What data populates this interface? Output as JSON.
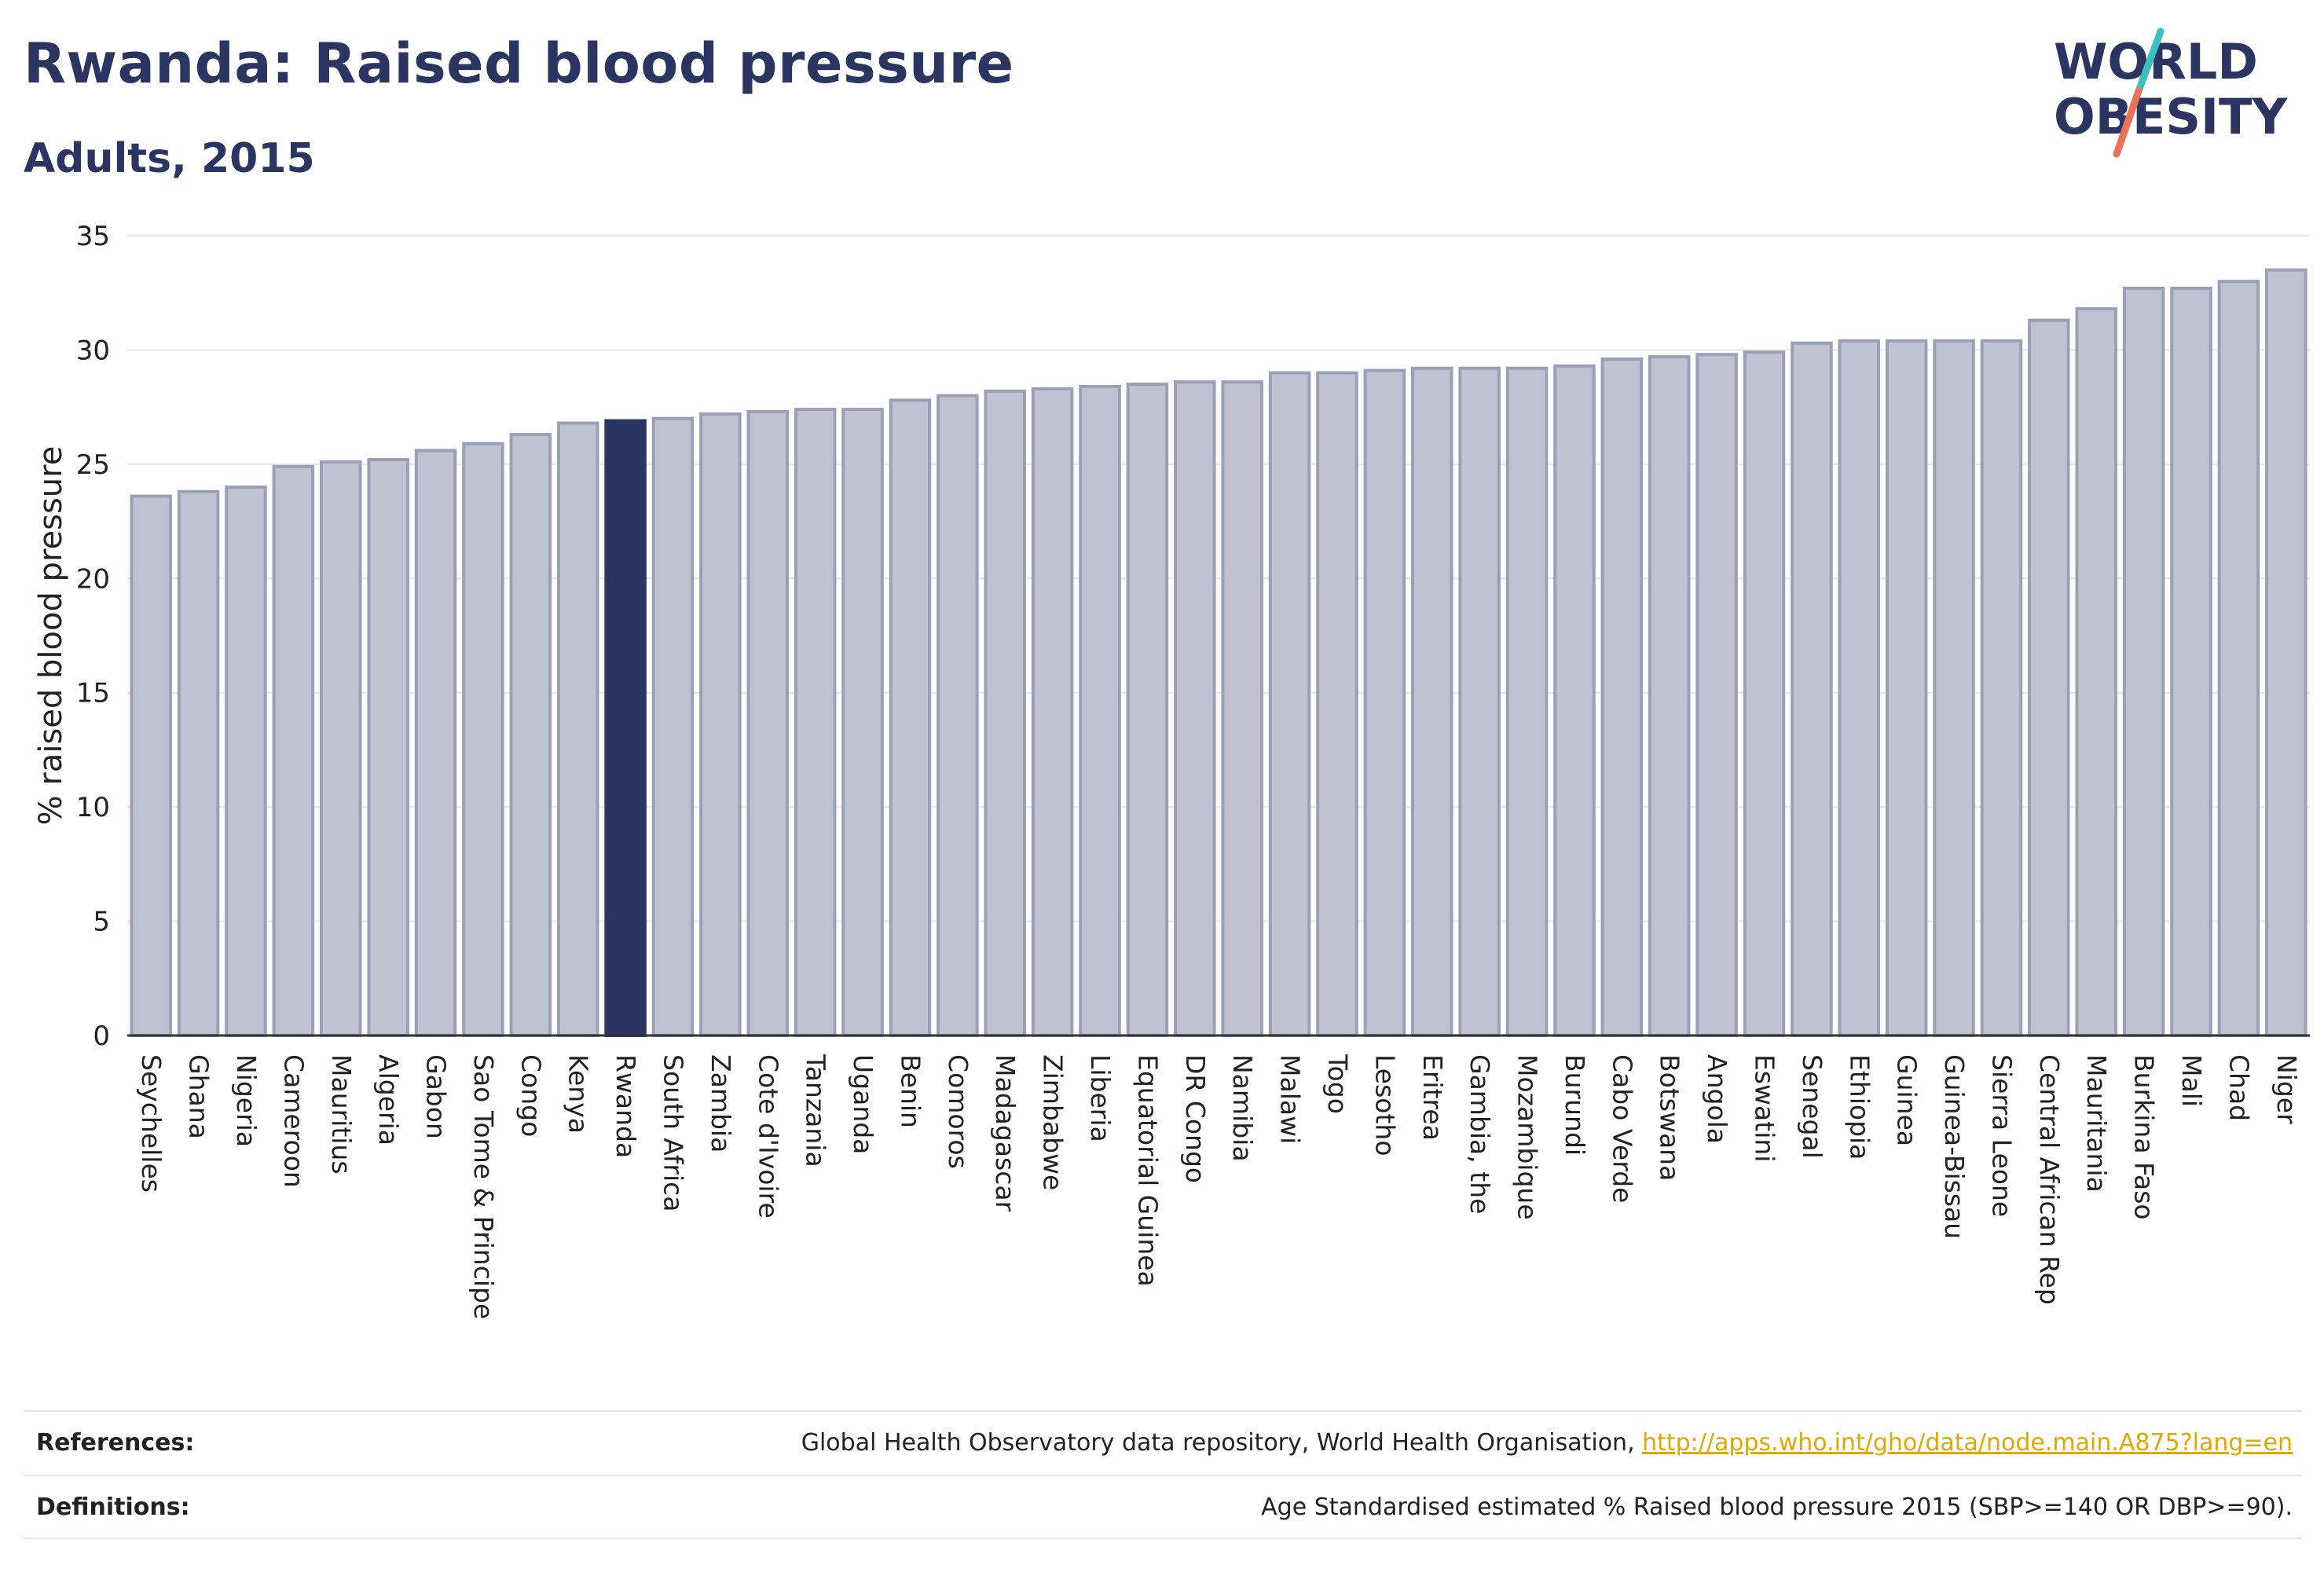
{
  "header": {
    "title": "Rwanda: Raised blood pressure",
    "subtitle": "Adults, 2015"
  },
  "logo": {
    "line1": "WORLD",
    "line2": "OBESITY",
    "accent_colors": [
      "#3bbfbf",
      "#e8735a"
    ]
  },
  "chart_data": {
    "type": "bar",
    "ylabel": "% raised blood pressure",
    "xlabel": "",
    "ylim": [
      0,
      35
    ],
    "yticks": [
      0,
      5,
      10,
      15,
      20,
      25,
      30,
      35
    ],
    "grid": true,
    "highlight": "Rwanda",
    "colors": {
      "default": "#bfc3d1",
      "default_border": "#9aa0b6",
      "highlight": "#2b3561"
    },
    "categories": [
      "Seychelles",
      "Ghana",
      "Nigeria",
      "Cameroon",
      "Mauritius",
      "Algeria",
      "Gabon",
      "Sao Tome & Principe",
      "Congo",
      "Kenya",
      "Rwanda",
      "South Africa",
      "Zambia",
      "Cote d'Ivoire",
      "Tanzania",
      "Uganda",
      "Benin",
      "Comoros",
      "Madagascar",
      "Zimbabwe",
      "Liberia",
      "Equatorial Guinea",
      "DR Congo",
      "Namibia",
      "Malawi",
      "Togo",
      "Lesotho",
      "Eritrea",
      "Gambia, the",
      "Mozambique",
      "Burundi",
      "Cabo Verde",
      "Botswana",
      "Angola",
      "Eswatini",
      "Senegal",
      "Ethiopia",
      "Guinea",
      "Guinea-Bissau",
      "Sierra Leone",
      "Central African Rep",
      "Mauritania",
      "Burkina Faso",
      "Mali",
      "Chad",
      "Niger"
    ],
    "values": [
      23.6,
      23.8,
      24.0,
      24.9,
      25.1,
      25.2,
      25.6,
      25.9,
      26.3,
      26.8,
      26.9,
      27.0,
      27.2,
      27.3,
      27.4,
      27.4,
      27.8,
      28.0,
      28.2,
      28.3,
      28.4,
      28.5,
      28.6,
      28.6,
      29.0,
      29.0,
      29.1,
      29.2,
      29.2,
      29.2,
      29.3,
      29.6,
      29.7,
      29.8,
      29.9,
      30.3,
      30.4,
      30.4,
      30.4,
      30.4,
      31.3,
      31.8,
      32.7,
      32.7,
      33.0,
      33.5
    ]
  },
  "footer": {
    "references_label": "References:",
    "references_text": "Global Health Observatory data repository, World Health Organisation, ",
    "references_link": "http://apps.who.int/gho/data/node.main.A875?lang=en",
    "definitions_label": "Definitions:",
    "definitions_text": "Age Standardised estimated % Raised blood pressure 2015 (SBP>=140 OR DBP>=90)."
  }
}
